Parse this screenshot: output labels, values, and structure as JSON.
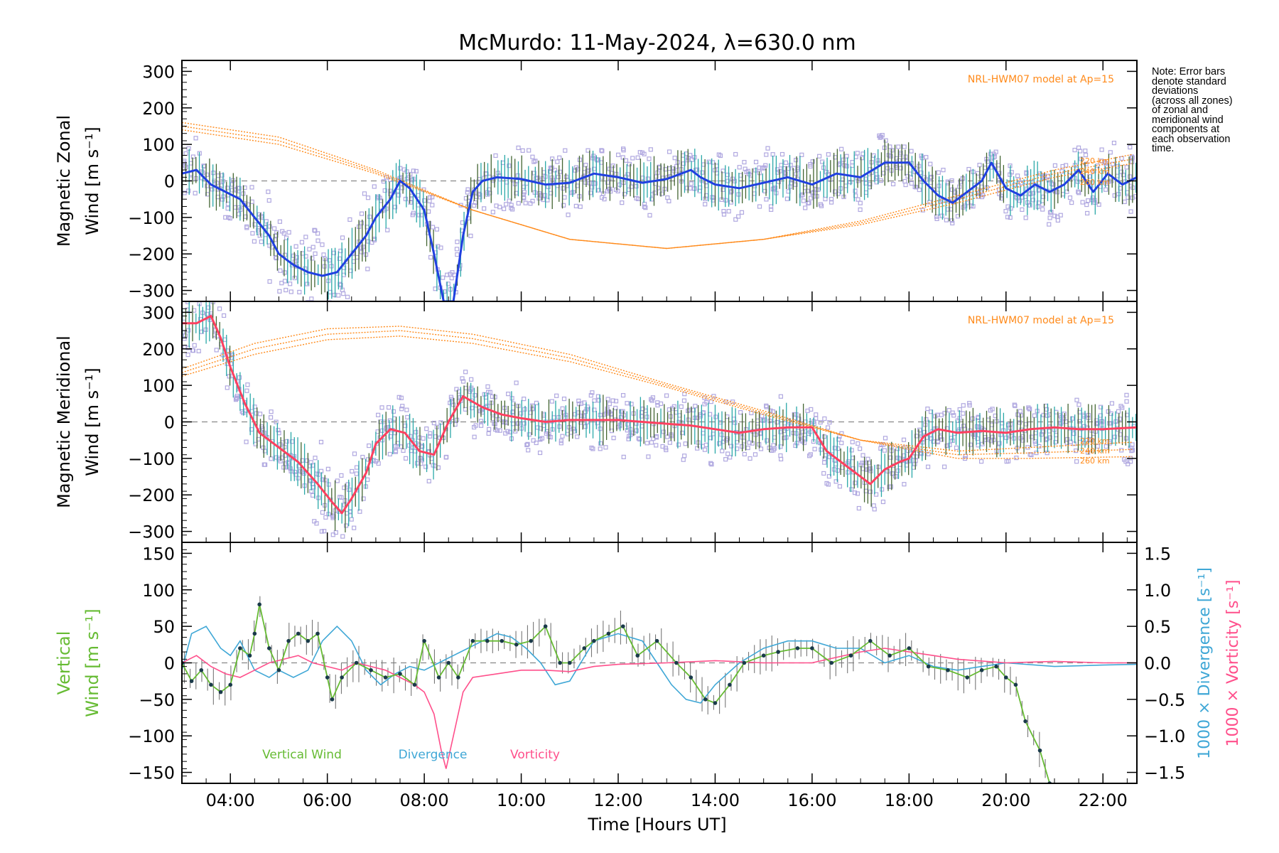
{
  "title": "McMurdo: 11-May-2024, λ=630.0 nm",
  "note": [
    "Note: Error bars",
    "denote standard",
    "deviations",
    "(across all zones)",
    "of zonal and",
    "meridional wind",
    "components at",
    "each observation",
    "time."
  ],
  "x_axis": {
    "label": "Time [Hours UT]",
    "ticks": [
      "04:00",
      "06:00",
      "08:00",
      "10:00",
      "12:00",
      "14:00",
      "16:00",
      "18:00",
      "20:00",
      "22:00"
    ],
    "tick_hours": [
      4,
      6,
      8,
      10,
      12,
      14,
      16,
      18,
      20,
      22
    ],
    "range": [
      3.0,
      22.7
    ]
  },
  "colors": {
    "zonal": "#2040e0",
    "meridional": "#ff4060",
    "model": "#ff8a1a",
    "vertical": "#66bb33",
    "divergence": "#3fa7d6",
    "vorticity": "#ff4f8b",
    "scatter": "#b0a8e0",
    "errorbar": "#446633",
    "marker": "#1a3a4a"
  },
  "chart_data": [
    {
      "type": "line",
      "panel": "zonal",
      "ylabel_line1": "Magnetic Zonal",
      "ylabel_line2": "Wind [m s⁻¹]",
      "ylim": [
        -330,
        330
      ],
      "yticks": [
        "300",
        "200",
        "100",
        "0",
        "−100",
        "−200",
        "−300"
      ],
      "ytick_values": [
        300,
        200,
        100,
        0,
        -100,
        -200,
        -300
      ],
      "model_label": "NRL-HWM07 model at Ap=15",
      "model_altitudes": [
        "220 km",
        "240 km",
        "260 km"
      ],
      "series": [
        {
          "x": [
            3.0,
            3.3,
            3.6,
            3.9,
            4.2,
            4.5,
            4.8,
            5.0,
            5.3,
            5.6,
            5.9,
            6.2,
            6.5,
            6.8,
            7.0,
            7.3,
            7.5,
            7.7,
            8.0,
            8.2,
            8.4,
            8.6,
            8.8,
            9.0,
            9.2,
            9.5,
            10.0,
            10.5,
            11.0,
            11.5,
            12.0,
            12.5,
            13.0,
            13.5,
            13.7,
            14.0,
            14.5,
            15.0,
            15.5,
            16.0,
            16.5,
            17.0,
            17.5,
            18.0,
            18.3,
            18.6,
            18.9,
            19.2,
            19.5,
            19.7,
            20.0,
            20.3,
            20.6,
            20.9,
            21.2,
            21.5,
            21.8,
            22.1,
            22.4,
            22.7
          ],
          "y": [
            20,
            30,
            -10,
            -30,
            -50,
            -100,
            -150,
            -200,
            -230,
            -250,
            -260,
            -250,
            -200,
            -150,
            -100,
            -50,
            0,
            -20,
            -80,
            -200,
            -330,
            -330,
            -150,
            -30,
            0,
            10,
            5,
            -10,
            -5,
            20,
            10,
            -5,
            5,
            30,
            10,
            -10,
            -20,
            -5,
            10,
            -10,
            20,
            10,
            50,
            50,
            0,
            -40,
            -60,
            -30,
            0,
            50,
            -20,
            -40,
            -10,
            -30,
            -10,
            30,
            -30,
            20,
            -10,
            10
          ]
        }
      ],
      "model_curves": [
        {
          "name": "220 km",
          "x": [
            3.0,
            5.0,
            7.0,
            9.0,
            11.0,
            13.0,
            15.0,
            17.0,
            19.0,
            21.0,
            22.7
          ],
          "y": [
            160,
            120,
            30,
            -80,
            -160,
            -185,
            -160,
            -110,
            -40,
            30,
            75
          ]
        },
        {
          "name": "240 km",
          "x": [
            3.0,
            5.0,
            7.0,
            9.0,
            11.0,
            13.0,
            15.0,
            17.0,
            19.0,
            21.0,
            22.7
          ],
          "y": [
            150,
            110,
            25,
            -80,
            -160,
            -185,
            -160,
            -115,
            -50,
            20,
            62
          ]
        },
        {
          "name": "260 km",
          "x": [
            3.0,
            5.0,
            7.0,
            9.0,
            11.0,
            13.0,
            15.0,
            17.0,
            19.0,
            21.0,
            22.7
          ],
          "y": [
            140,
            100,
            20,
            -80,
            -160,
            -185,
            -160,
            -120,
            -60,
            10,
            50
          ]
        }
      ]
    },
    {
      "type": "line",
      "panel": "meridional",
      "ylabel_line1": "Magnetic Meridional",
      "ylabel_line2": "Wind [m s⁻¹]",
      "ylim": [
        -330,
        330
      ],
      "yticks": [
        "300",
        "200",
        "100",
        "0",
        "−100",
        "−200",
        "−300"
      ],
      "ytick_values": [
        300,
        200,
        100,
        0,
        -100,
        -200,
        -300
      ],
      "model_label": "NRL-HWM07 model at Ap=15",
      "model_altitudes": [
        "220 km",
        "240 km",
        "260 km"
      ],
      "series": [
        {
          "x": [
            3.0,
            3.3,
            3.6,
            3.8,
            4.0,
            4.3,
            4.6,
            5.0,
            5.4,
            5.8,
            6.1,
            6.3,
            6.5,
            6.8,
            7.0,
            7.3,
            7.6,
            7.9,
            8.2,
            8.5,
            8.8,
            9.2,
            9.6,
            10.0,
            10.5,
            11.0,
            11.5,
            12.0,
            12.5,
            13.0,
            13.5,
            14.0,
            14.5,
            15.0,
            15.5,
            16.0,
            16.3,
            16.6,
            16.9,
            17.2,
            17.5,
            17.8,
            18.0,
            18.3,
            18.6,
            19.0,
            19.5,
            20.0,
            20.5,
            21.0,
            21.5,
            22.0,
            22.7
          ],
          "y": [
            270,
            270,
            290,
            230,
            150,
            50,
            -30,
            -70,
            -110,
            -170,
            -220,
            -250,
            -210,
            -140,
            -60,
            -20,
            -30,
            -80,
            -90,
            0,
            70,
            40,
            20,
            10,
            0,
            5,
            5,
            5,
            0,
            -5,
            -10,
            -20,
            -30,
            -20,
            -15,
            -15,
            -80,
            -110,
            -140,
            -170,
            -130,
            -110,
            -100,
            -40,
            -20,
            -30,
            -25,
            -30,
            -20,
            -15,
            -20,
            -20,
            -15
          ]
        }
      ],
      "model_curves": [
        {
          "name": "220 km",
          "x": [
            3.0,
            4.5,
            6.0,
            7.5,
            9.0,
            11.0,
            13.0,
            15.0,
            17.0,
            19.0,
            20.5,
            22.7
          ],
          "y": [
            125,
            185,
            225,
            235,
            215,
            165,
            95,
            20,
            -50,
            -80,
            -70,
            -55
          ]
        },
        {
          "name": "240 km",
          "x": [
            3.0,
            4.5,
            6.0,
            7.5,
            9.0,
            11.0,
            13.0,
            15.0,
            17.0,
            19.0,
            20.5,
            22.7
          ],
          "y": [
            135,
            200,
            240,
            250,
            228,
            175,
            100,
            25,
            -50,
            -90,
            -85,
            -75
          ]
        },
        {
          "name": "260 km",
          "x": [
            3.0,
            4.5,
            6.0,
            7.5,
            9.0,
            11.0,
            13.0,
            15.0,
            17.0,
            19.0,
            20.5,
            22.7
          ],
          "y": [
            145,
            215,
            255,
            262,
            240,
            185,
            105,
            30,
            -50,
            -100,
            -100,
            -95
          ]
        }
      ]
    },
    {
      "type": "line",
      "panel": "vertical",
      "ylabel_line1": "Vertical",
      "ylabel_line2": "Wind [m s⁻¹]",
      "ylim": [
        -165,
        165
      ],
      "yticks": [
        "150",
        "100",
        "50",
        "0",
        "−50",
        "−100",
        "−150"
      ],
      "ytick_values": [
        150,
        100,
        50,
        0,
        -50,
        -100,
        -150
      ],
      "y2_label_divergence": "1000 × Divergence [s⁻¹]",
      "y2_label_vorticity": "1000 × Vorticity [s⁻¹]",
      "y2lim": [
        -1.65,
        1.65
      ],
      "y2ticks": [
        "1.5",
        "1.0",
        "0.5",
        "0.0",
        "−0.5",
        "−1.0",
        "−1.5"
      ],
      "y2tick_values": [
        1.5,
        1.0,
        0.5,
        0.0,
        -0.5,
        -1.0,
        -1.5
      ],
      "legend": [
        "Vertical Wind",
        "Divergence",
        "Vorticity"
      ],
      "series": [
        {
          "name": "Vertical Wind",
          "x": [
            3.0,
            3.2,
            3.4,
            3.6,
            3.8,
            4.0,
            4.2,
            4.4,
            4.5,
            4.6,
            4.8,
            5.0,
            5.2,
            5.4,
            5.6,
            5.8,
            6.0,
            6.1,
            6.3,
            6.6,
            6.9,
            7.2,
            7.5,
            7.8,
            8.0,
            8.3,
            8.5,
            8.7,
            9.0,
            9.3,
            9.6,
            9.9,
            10.2,
            10.5,
            10.8,
            11.0,
            11.3,
            11.5,
            11.8,
            12.1,
            12.4,
            12.8,
            13.2,
            13.5,
            13.8,
            14.0,
            14.3,
            14.6,
            15.0,
            15.3,
            15.7,
            16.0,
            16.4,
            16.8,
            17.2,
            17.6,
            18.0,
            18.4,
            18.8,
            19.2,
            19.5,
            19.8,
            20.0,
            20.2,
            20.4,
            20.7,
            20.9
          ],
          "y": [
            0,
            -25,
            -10,
            -30,
            -40,
            -30,
            20,
            10,
            40,
            80,
            20,
            -10,
            30,
            40,
            30,
            40,
            -20,
            -50,
            -20,
            0,
            -10,
            -20,
            -15,
            -30,
            30,
            -20,
            0,
            -20,
            30,
            30,
            30,
            25,
            30,
            50,
            0,
            0,
            20,
            30,
            40,
            50,
            10,
            30,
            0,
            -20,
            -50,
            -55,
            -30,
            0,
            10,
            15,
            20,
            20,
            0,
            10,
            30,
            10,
            20,
            -5,
            -10,
            -20,
            -10,
            -5,
            -20,
            -30,
            -80,
            -120,
            -165
          ]
        },
        {
          "name": "Divergence",
          "x": [
            3.0,
            3.2,
            3.5,
            3.8,
            4.0,
            4.2,
            4.5,
            4.8,
            5.0,
            5.3,
            5.6,
            5.9,
            6.2,
            6.5,
            6.8,
            7.1,
            7.4,
            7.7,
            8.0,
            8.3,
            8.6,
            8.9,
            9.2,
            9.5,
            9.8,
            10.1,
            10.4,
            10.7,
            11.0,
            11.5,
            12.0,
            12.5,
            12.8,
            13.1,
            13.4,
            13.7,
            14.0,
            14.5,
            15.0,
            15.5,
            16.0,
            16.5,
            17.0,
            17.5,
            18.0,
            18.5,
            19.0,
            19.5,
            20.0,
            21.0,
            22.0,
            22.7
          ],
          "y": [
            -0.1,
            0.4,
            0.5,
            0.2,
            0.1,
            0.3,
            -0.1,
            -0.2,
            -0.1,
            -0.2,
            -0.1,
            0.3,
            0.5,
            0.3,
            -0.1,
            -0.3,
            -0.15,
            -0.05,
            -0.1,
            0.0,
            0.1,
            0.2,
            0.3,
            0.4,
            0.35,
            0.2,
            0.0,
            -0.3,
            -0.25,
            0.3,
            0.4,
            0.3,
            0.0,
            -0.3,
            -0.5,
            -0.55,
            -0.3,
            0.0,
            0.2,
            0.3,
            0.3,
            0.2,
            0.2,
            0.0,
            0.1,
            -0.05,
            -0.1,
            -0.05,
            0.0,
            -0.05,
            -0.03,
            -0.02
          ]
        },
        {
          "name": "Vorticity",
          "x": [
            3.0,
            3.3,
            3.6,
            3.9,
            4.2,
            4.5,
            4.8,
            5.1,
            5.4,
            5.7,
            6.0,
            6.3,
            6.6,
            6.9,
            7.2,
            7.5,
            7.8,
            8.0,
            8.2,
            8.35,
            8.45,
            8.6,
            8.8,
            9.0,
            9.5,
            10.0,
            10.5,
            11.0,
            11.5,
            12.0,
            13.0,
            14.0,
            15.0,
            16.0,
            17.0,
            17.5,
            18.0,
            18.5,
            19.0,
            20.0,
            21.0,
            22.0,
            22.7
          ],
          "y": [
            0.0,
            0.1,
            -0.05,
            -0.15,
            -0.2,
            -0.1,
            0.0,
            0.05,
            0.1,
            0.0,
            -0.05,
            -0.1,
            0.0,
            -0.05,
            -0.1,
            -0.2,
            -0.3,
            -0.4,
            -0.7,
            -1.2,
            -1.45,
            -1.0,
            -0.4,
            -0.2,
            -0.15,
            -0.1,
            -0.1,
            -0.12,
            -0.05,
            -0.02,
            0.0,
            0.03,
            0.0,
            0.0,
            0.15,
            0.2,
            0.15,
            0.1,
            0.05,
            0.0,
            0.02,
            0.0,
            0.0
          ]
        }
      ]
    }
  ]
}
